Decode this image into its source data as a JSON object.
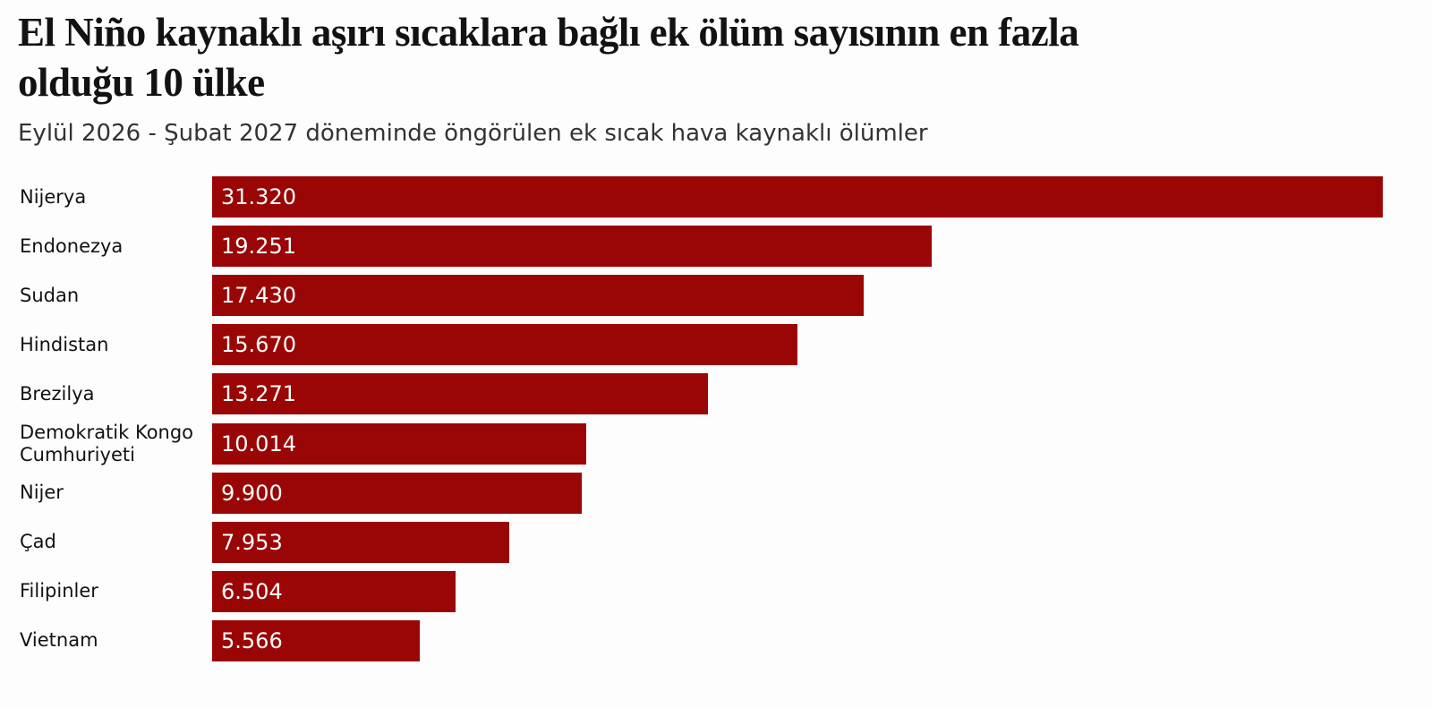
{
  "chart_data": {
    "type": "bar",
    "orientation": "horizontal",
    "title": "El Niño kaynaklı aşırı sıcaklara bağlı ek ölüm sayısının en fazla olduğu 10 ülke",
    "subtitle": "Eylül 2026 - Şubat 2027 döneminde öngörülen ek sıcak hava kaynaklı ölümler",
    "categories": [
      "Nijerya",
      "Endonezya",
      "Sudan",
      "Hindistan",
      "Brezilya",
      "Demokratik Kongo Cumhuriyeti",
      "Nijer",
      "Çad",
      "Filipinler",
      "Vietnam"
    ],
    "values": [
      31320,
      19251,
      17430,
      15670,
      13271,
      10014,
      9900,
      7953,
      6504,
      5566
    ],
    "value_labels": [
      "31.320",
      "19.251",
      "17.430",
      "15.670",
      "13.271",
      "10.014",
      "9.900",
      "7.953",
      "6.504",
      "5.566"
    ],
    "color": "#9a0606"
  }
}
